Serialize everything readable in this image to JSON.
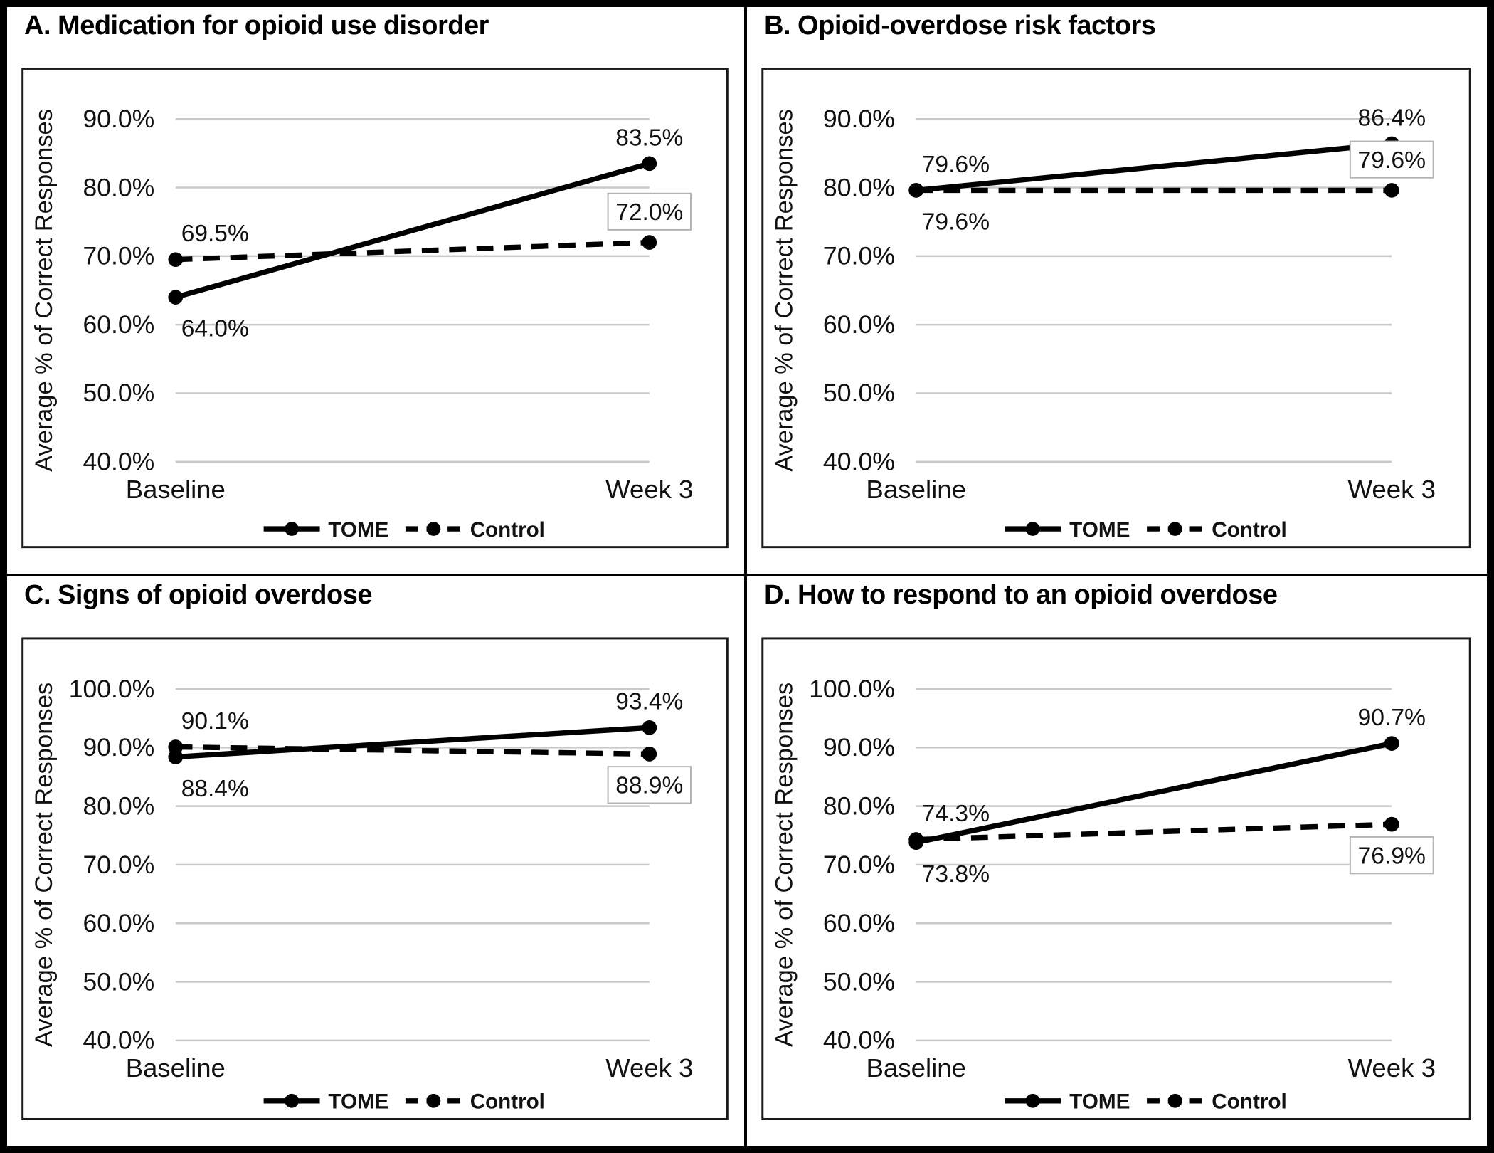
{
  "figure": {
    "background": "#ffffff",
    "categories": [
      "Baseline",
      "Week 3"
    ],
    "ylabel": "Average % of Correct Responses",
    "legend": [
      "TOME",
      "Control"
    ]
  },
  "colors": {
    "series": "#000000",
    "grid": "#c9c9c9",
    "plot_border": "#1a1a1a",
    "label_box_border": "#b3b3b3",
    "label_box_fill": "#ffffff",
    "text": "#111111"
  },
  "chart_data": [
    {
      "type": "line",
      "panel": "A",
      "title": "A. Medication for opioid use disorder",
      "ylabel": "Average % of Correct Responses",
      "x_labels": [
        "Baseline",
        "Week 3"
      ],
      "ylim": [
        40,
        90
      ],
      "ytick_labels": [
        "90.0%",
        "80.0%",
        "70.0%",
        "60.0%",
        "50.0%",
        "40.0%"
      ],
      "grid": true,
      "legend_position": "bottom",
      "series": [
        {
          "name": "TOME",
          "line_style": "solid",
          "values": [
            64.0,
            83.5
          ],
          "data_labels": [
            "64.0%",
            "83.5%"
          ],
          "label_placement": [
            "below",
            "above"
          ],
          "label_boxed": [
            false,
            false
          ]
        },
        {
          "name": "Control",
          "line_style": "dashed",
          "values": [
            69.5,
            72.0
          ],
          "data_labels": [
            "69.5%",
            "72.0%"
          ],
          "label_placement": [
            "above",
            "above"
          ],
          "label_boxed": [
            false,
            true
          ]
        }
      ]
    },
    {
      "type": "line",
      "panel": "B",
      "title": "B. Opioid-overdose risk factors",
      "ylabel": "Average % of Correct Responses",
      "x_labels": [
        "Baseline",
        "Week 3"
      ],
      "ylim": [
        40,
        90
      ],
      "ytick_labels": [
        "90.0%",
        "80.0%",
        "70.0%",
        "60.0%",
        "50.0%",
        "40.0%"
      ],
      "grid": true,
      "legend_position": "bottom",
      "series": [
        {
          "name": "TOME",
          "line_style": "solid",
          "values": [
            79.6,
            86.4
          ],
          "data_labels": [
            "79.6%",
            "86.4%"
          ],
          "label_placement": [
            "above",
            "above"
          ],
          "label_boxed": [
            false,
            false
          ]
        },
        {
          "name": "Control",
          "line_style": "dashed",
          "values": [
            79.6,
            79.6
          ],
          "data_labels": [
            "79.6%",
            "79.6%"
          ],
          "label_placement": [
            "below",
            "above"
          ],
          "label_boxed": [
            false,
            true
          ]
        }
      ]
    },
    {
      "type": "line",
      "panel": "C",
      "title": "C. Signs of opioid overdose",
      "ylabel": "Average % of Correct Responses",
      "x_labels": [
        "Baseline",
        "Week 3"
      ],
      "ylim": [
        40,
        100
      ],
      "ytick_labels": [
        "100.0%",
        "90.0%",
        "80.0%",
        "70.0%",
        "60.0%",
        "50.0%",
        "40.0%"
      ],
      "grid": true,
      "legend_position": "bottom",
      "series": [
        {
          "name": "TOME",
          "line_style": "solid",
          "values": [
            88.4,
            93.4
          ],
          "data_labels": [
            "88.4%",
            "93.4%"
          ],
          "label_placement": [
            "below",
            "above"
          ],
          "label_boxed": [
            false,
            false
          ]
        },
        {
          "name": "Control",
          "line_style": "dashed",
          "values": [
            90.1,
            88.9
          ],
          "data_labels": [
            "90.1%",
            "88.9%"
          ],
          "label_placement": [
            "above",
            "below"
          ],
          "label_boxed": [
            false,
            true
          ]
        }
      ]
    },
    {
      "type": "line",
      "panel": "D",
      "title": "D. How to respond to an opioid overdose",
      "ylabel": "Average % of Correct Responses",
      "x_labels": [
        "Baseline",
        "Week 3"
      ],
      "ylim": [
        40,
        100
      ],
      "ytick_labels": [
        "100.0%",
        "90.0%",
        "80.0%",
        "70.0%",
        "60.0%",
        "50.0%",
        "40.0%"
      ],
      "grid": true,
      "legend_position": "bottom",
      "series": [
        {
          "name": "TOME",
          "line_style": "solid",
          "values": [
            73.8,
            90.7
          ],
          "data_labels": [
            "73.8%",
            "90.7%"
          ],
          "label_placement": [
            "below",
            "above"
          ],
          "label_boxed": [
            false,
            false
          ]
        },
        {
          "name": "Control",
          "line_style": "dashed",
          "values": [
            74.3,
            76.9
          ],
          "data_labels": [
            "74.3%",
            "76.9%"
          ],
          "label_placement": [
            "above",
            "below"
          ],
          "label_boxed": [
            false,
            true
          ]
        }
      ]
    }
  ]
}
